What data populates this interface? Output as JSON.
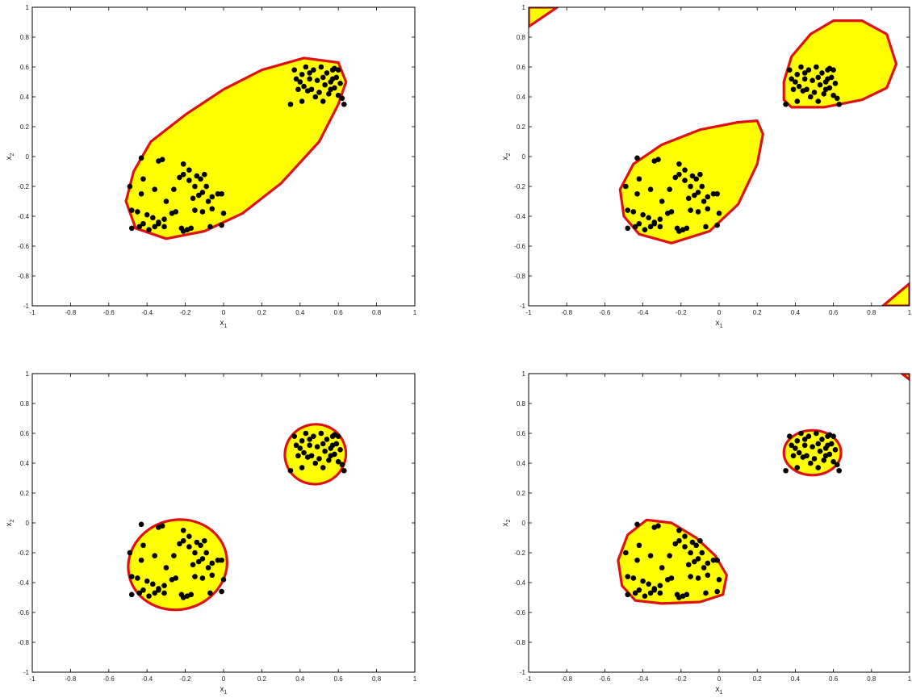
{
  "figure": {
    "colors": {
      "region_fill": "#ffff00",
      "region_edge": "#dd1111",
      "points": "#000000",
      "axes": "#000000"
    }
  },
  "chart_data": [
    {
      "type": "scatter",
      "xlabel": "x",
      "xlabel_sub": "1",
      "ylabel": "x",
      "ylabel_sub": "2",
      "xlim": [
        -1,
        1
      ],
      "ylim": [
        -1,
        1
      ],
      "xticks": [
        -1,
        -0.8,
        -0.6,
        -0.4,
        -0.2,
        0,
        0.2,
        0.4,
        0.6,
        0.8,
        1
      ],
      "yticks": [
        -1,
        -0.8,
        -0.6,
        -0.4,
        -0.2,
        0,
        0.2,
        0.4,
        0.6,
        0.8,
        1
      ],
      "grid": false,
      "regions": [
        {
          "shape": "polygon",
          "points": [
            [
              -0.3,
              -0.55
            ],
            [
              -0.1,
              -0.5
            ],
            [
              0.1,
              -0.38
            ],
            [
              0.3,
              -0.18
            ],
            [
              0.5,
              0.1
            ],
            [
              0.6,
              0.35
            ],
            [
              0.64,
              0.5
            ],
            [
              0.6,
              0.63
            ],
            [
              0.42,
              0.66
            ],
            [
              0.2,
              0.58
            ],
            [
              0.0,
              0.45
            ],
            [
              -0.2,
              0.28
            ],
            [
              -0.38,
              0.1
            ],
            [
              -0.47,
              -0.1
            ],
            [
              -0.51,
              -0.3
            ],
            [
              -0.46,
              -0.48
            ]
          ]
        }
      ]
    },
    {
      "type": "scatter",
      "xlabel": "x",
      "xlabel_sub": "1",
      "ylabel": "x",
      "ylabel_sub": "2",
      "xlim": [
        -1,
        1
      ],
      "ylim": [
        -1,
        1
      ],
      "xticks": [
        -1,
        -0.8,
        -0.6,
        -0.4,
        -0.2,
        0,
        0.2,
        0.4,
        0.6,
        0.8,
        1
      ],
      "yticks": [
        -1,
        -0.8,
        -0.6,
        -0.4,
        -0.2,
        0,
        0.2,
        0.4,
        0.6,
        0.8,
        1
      ],
      "grid": false,
      "regions": [
        {
          "shape": "polygon",
          "points": [
            [
              -0.25,
              -0.58
            ],
            [
              -0.05,
              -0.5
            ],
            [
              0.1,
              -0.32
            ],
            [
              0.2,
              -0.05
            ],
            [
              0.23,
              0.15
            ],
            [
              0.2,
              0.24
            ],
            [
              0.1,
              0.23
            ],
            [
              -0.1,
              0.18
            ],
            [
              -0.3,
              0.08
            ],
            [
              -0.45,
              -0.05
            ],
            [
              -0.52,
              -0.22
            ],
            [
              -0.5,
              -0.4
            ],
            [
              -0.42,
              -0.52
            ]
          ]
        },
        {
          "shape": "polygon",
          "points": [
            [
              0.38,
              0.33
            ],
            [
              0.55,
              0.33
            ],
            [
              0.75,
              0.38
            ],
            [
              0.88,
              0.46
            ],
            [
              0.93,
              0.62
            ],
            [
              0.88,
              0.82
            ],
            [
              0.75,
              0.91
            ],
            [
              0.6,
              0.91
            ],
            [
              0.48,
              0.82
            ],
            [
              0.38,
              0.67
            ],
            [
              0.34,
              0.5
            ],
            [
              0.34,
              0.38
            ]
          ]
        },
        {
          "shape": "polygon",
          "points": [
            [
              -1,
              0.87
            ],
            [
              -1,
              1
            ],
            [
              -0.85,
              1
            ]
          ]
        },
        {
          "shape": "polygon",
          "points": [
            [
              0.86,
              -1
            ],
            [
              1,
              -1
            ],
            [
              1,
              -0.85
            ]
          ]
        }
      ]
    },
    {
      "type": "scatter",
      "xlabel": "x",
      "xlabel_sub": "1",
      "ylabel": "x",
      "ylabel_sub": "2",
      "xlim": [
        -1,
        1
      ],
      "ylim": [
        -1,
        1
      ],
      "xticks": [
        -1,
        -0.8,
        -0.6,
        -0.4,
        -0.2,
        0,
        0.2,
        0.4,
        0.6,
        0.8,
        1
      ],
      "yticks": [
        -1,
        -0.8,
        -0.6,
        -0.4,
        -0.2,
        0,
        0.2,
        0.4,
        0.6,
        0.8,
        1
      ],
      "grid": false,
      "regions": [
        {
          "shape": "ellipse",
          "cx": -0.24,
          "cy": -0.28,
          "rx": 0.26,
          "ry": 0.3,
          "rotate": -15
        },
        {
          "shape": "ellipse",
          "cx": 0.48,
          "cy": 0.46,
          "rx": 0.16,
          "ry": 0.2,
          "rotate": -20
        }
      ]
    },
    {
      "type": "scatter",
      "xlabel": "x",
      "xlabel_sub": "1",
      "ylabel": "x",
      "ylabel_sub": "2",
      "xlim": [
        -1,
        1
      ],
      "ylim": [
        -1,
        1
      ],
      "xticks": [
        -1,
        -0.8,
        -0.6,
        -0.4,
        -0.2,
        0,
        0.2,
        0.4,
        0.6,
        0.8,
        1
      ],
      "yticks": [
        -1,
        -0.8,
        -0.6,
        -0.4,
        -0.2,
        0,
        0.2,
        0.4,
        0.6,
        0.8,
        1
      ],
      "grid": false,
      "regions": [
        {
          "shape": "polygon",
          "points": [
            [
              -0.3,
              -0.54
            ],
            [
              -0.1,
              -0.53
            ],
            [
              0.02,
              -0.48
            ],
            [
              0.04,
              -0.35
            ],
            [
              -0.02,
              -0.22
            ],
            [
              -0.12,
              -0.1
            ],
            [
              -0.25,
              0.0
            ],
            [
              -0.38,
              0.02
            ],
            [
              -0.48,
              -0.08
            ],
            [
              -0.53,
              -0.25
            ],
            [
              -0.51,
              -0.42
            ],
            [
              -0.44,
              -0.52
            ]
          ]
        },
        {
          "shape": "ellipse",
          "cx": 0.49,
          "cy": 0.47,
          "rx": 0.15,
          "ry": 0.15,
          "rotate": 0
        },
        {
          "shape": "polygon",
          "points": [
            [
              0.96,
              1
            ],
            [
              1,
              1
            ],
            [
              1,
              0.96
            ]
          ]
        }
      ]
    }
  ],
  "points": [
    [
      -0.48,
      -0.48
    ],
    [
      -0.44,
      -0.47
    ],
    [
      -0.42,
      -0.45
    ],
    [
      -0.39,
      -0.49
    ],
    [
      -0.36,
      -0.47
    ],
    [
      -0.34,
      -0.45
    ],
    [
      -0.31,
      -0.47
    ],
    [
      -0.22,
      -0.48
    ],
    [
      -0.21,
      -0.5
    ],
    [
      -0.19,
      -0.49
    ],
    [
      -0.17,
      -0.48
    ],
    [
      -0.07,
      -0.47
    ],
    [
      -0.01,
      -0.46
    ],
    [
      -0.48,
      -0.36
    ],
    [
      -0.45,
      -0.37
    ],
    [
      -0.4,
      -0.39
    ],
    [
      -0.37,
      -0.41
    ],
    [
      -0.34,
      -0.44
    ],
    [
      -0.31,
      -0.42
    ],
    [
      -0.27,
      -0.38
    ],
    [
      -0.25,
      -0.37
    ],
    [
      -0.15,
      -0.36
    ],
    [
      -0.11,
      -0.37
    ],
    [
      -0.06,
      -0.35
    ],
    [
      0.0,
      -0.38
    ],
    [
      -0.43,
      -0.25
    ],
    [
      -0.42,
      -0.15
    ],
    [
      -0.36,
      -0.22
    ],
    [
      -0.3,
      -0.3
    ],
    [
      -0.26,
      -0.22
    ],
    [
      -0.23,
      -0.14
    ],
    [
      -0.21,
      -0.12
    ],
    [
      -0.18,
      -0.16
    ],
    [
      -0.15,
      -0.2
    ],
    [
      -0.13,
      -0.26
    ],
    [
      -0.11,
      -0.24
    ],
    [
      -0.09,
      -0.2
    ],
    [
      -0.06,
      -0.27
    ],
    [
      -0.03,
      -0.25
    ],
    [
      -0.01,
      -0.25
    ],
    [
      -0.49,
      -0.2
    ],
    [
      -0.43,
      -0.01
    ],
    [
      -0.34,
      -0.03
    ],
    [
      -0.32,
      -0.02
    ],
    [
      -0.21,
      -0.05
    ],
    [
      -0.18,
      -0.09
    ],
    [
      -0.14,
      -0.13
    ],
    [
      -0.12,
      -0.15
    ],
    [
      -0.1,
      -0.12
    ],
    [
      -0.16,
      -0.28
    ],
    [
      -0.08,
      -0.3
    ],
    [
      0.35,
      0.35
    ],
    [
      0.37,
      0.58
    ],
    [
      0.39,
      0.45
    ],
    [
      0.4,
      0.5
    ],
    [
      0.41,
      0.55
    ],
    [
      0.42,
      0.47
    ],
    [
      0.43,
      0.6
    ],
    [
      0.44,
      0.44
    ],
    [
      0.45,
      0.52
    ],
    [
      0.46,
      0.45
    ],
    [
      0.47,
      0.58
    ],
    [
      0.48,
      0.4
    ],
    [
      0.49,
      0.51
    ],
    [
      0.5,
      0.43
    ],
    [
      0.51,
      0.6
    ],
    [
      0.52,
      0.37
    ],
    [
      0.53,
      0.48
    ],
    [
      0.54,
      0.56
    ],
    [
      0.55,
      0.42
    ],
    [
      0.56,
      0.5
    ],
    [
      0.57,
      0.58
    ],
    [
      0.58,
      0.46
    ],
    [
      0.59,
      0.53
    ],
    [
      0.6,
      0.41
    ],
    [
      0.61,
      0.49
    ],
    [
      0.62,
      0.39
    ],
    [
      0.63,
      0.35
    ],
    [
      0.58,
      0.59
    ],
    [
      0.57,
      0.52
    ],
    [
      0.45,
      0.56
    ],
    [
      0.41,
      0.37
    ],
    [
      0.38,
      0.52
    ],
    [
      0.52,
      0.53
    ],
    [
      0.6,
      0.58
    ],
    [
      0.56,
      0.45
    ]
  ]
}
